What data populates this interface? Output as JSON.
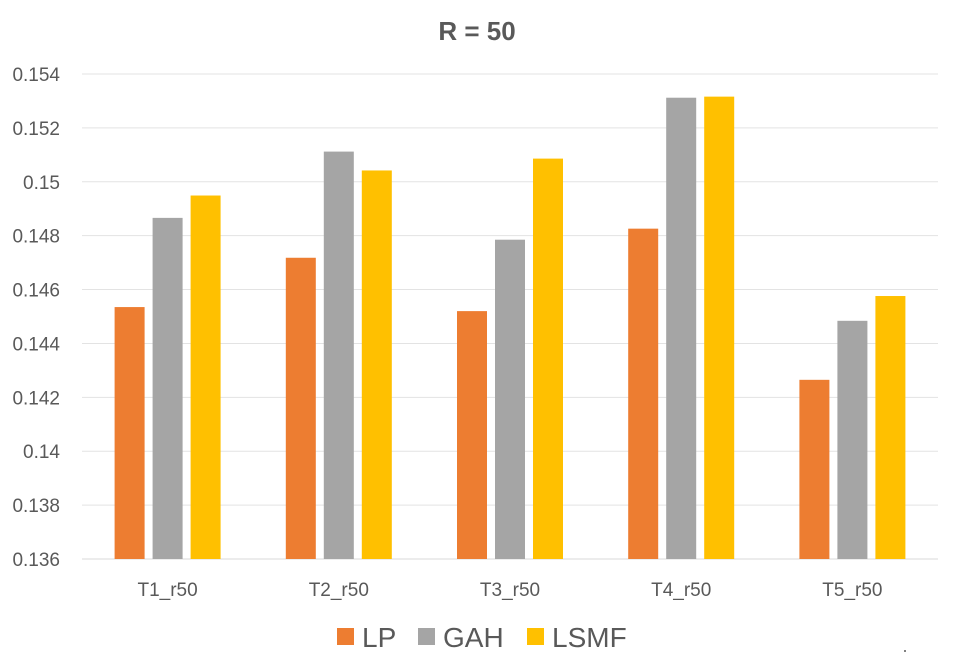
{
  "chart_data": {
    "type": "bar",
    "title": "R = 50",
    "categories": [
      "T1_r50",
      "T2_r50",
      "T3_r50",
      "T4_r50",
      "T5_r50"
    ],
    "series": [
      {
        "name": "LP",
        "color": "#ED7D31",
        "values": [
          0.14535,
          0.14718,
          0.1452,
          0.14826,
          0.14265
        ]
      },
      {
        "name": "GAH",
        "color": "#A5A5A5",
        "values": [
          0.14866,
          0.15112,
          0.14785,
          0.15312,
          0.14484
        ]
      },
      {
        "name": "LSMF",
        "color": "#FFC000",
        "values": [
          0.14949,
          0.15042,
          0.15086,
          0.15316,
          0.14576
        ]
      }
    ],
    "ylim": [
      0.136,
      0.154
    ],
    "yticks": [
      "0.136",
      "0.138",
      "0.14",
      "0.142",
      "0.144",
      "0.146",
      "0.148",
      "0.15",
      "0.152",
      "0.154"
    ],
    "grid": true,
    "legend_position": "bottom"
  }
}
